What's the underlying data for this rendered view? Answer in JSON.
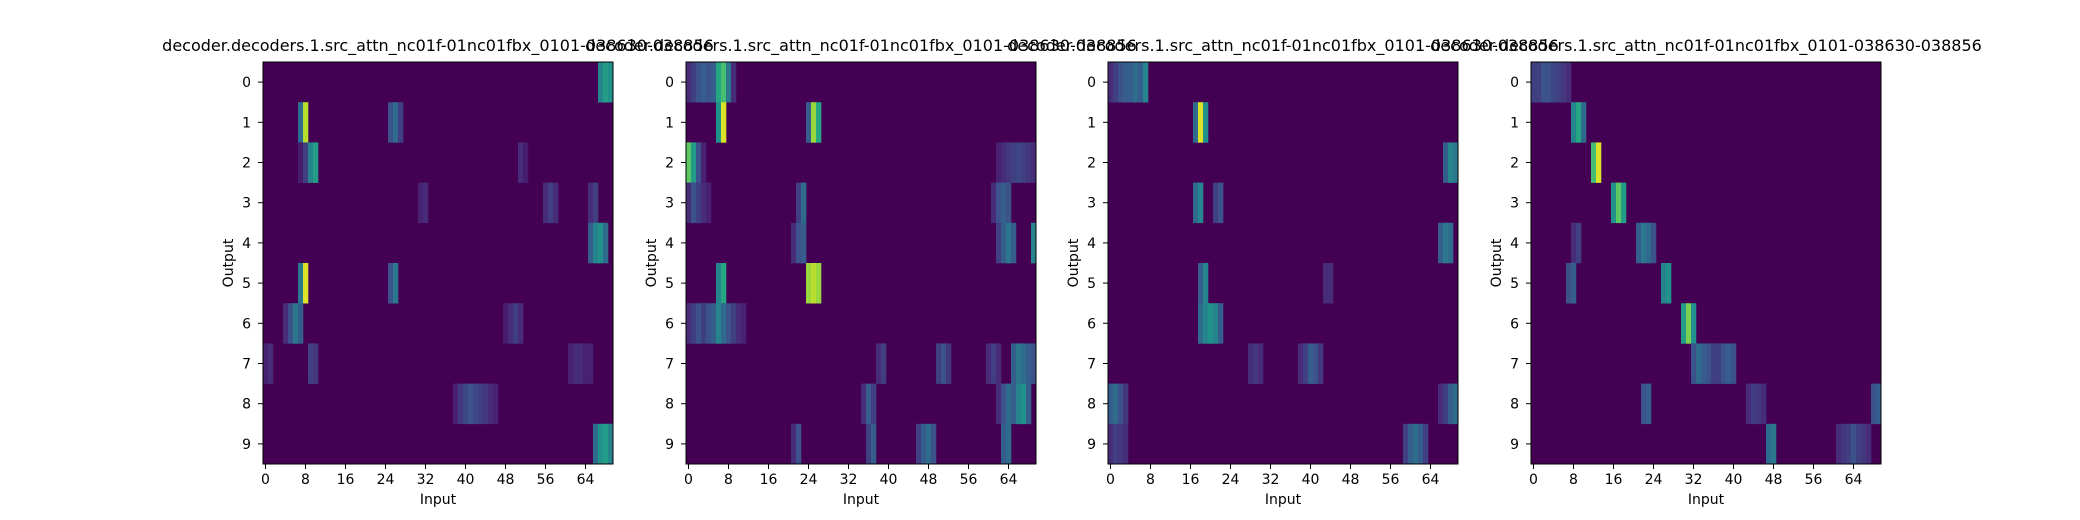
{
  "chart_data": [
    {
      "type": "heatmap",
      "title": "decoder.decoders.1.src_attn_nc01f-01nc01fbx_0101-038630-038856",
      "xlabel": "Input",
      "ylabel": "Output",
      "x_ticks": [
        0,
        8,
        16,
        24,
        32,
        40,
        48,
        56,
        64
      ],
      "y_ticks": [
        0,
        1,
        2,
        3,
        4,
        5,
        6,
        7,
        8,
        9
      ],
      "x_range": [
        0,
        70
      ],
      "rows": 10,
      "colormap": "viridis",
      "highlights": [
        {
          "row": 0,
          "cols": [
            67,
            68,
            69
          ],
          "values": [
            0.45,
            0.55,
            0.5
          ]
        },
        {
          "row": 1,
          "cols": [
            7,
            8
          ],
          "values": [
            0.35,
            0.9
          ]
        },
        {
          "row": 1,
          "cols": [
            25,
            26,
            27
          ],
          "values": [
            0.25,
            0.35,
            0.2
          ]
        },
        {
          "row": 2,
          "cols": [
            7,
            8,
            9,
            10
          ],
          "values": [
            0.1,
            0.2,
            0.45,
            0.55
          ]
        },
        {
          "row": 2,
          "cols": [
            51,
            52
          ],
          "values": [
            0.15,
            0.1
          ]
        },
        {
          "row": 3,
          "cols": [
            31,
            32,
            56,
            57,
            58,
            65,
            66
          ],
          "values": [
            0.12,
            0.15,
            0.15,
            0.2,
            0.15,
            0.15,
            0.2
          ]
        },
        {
          "row": 4,
          "cols": [
            65,
            66,
            67,
            68
          ],
          "values": [
            0.3,
            0.45,
            0.5,
            0.35
          ]
        },
        {
          "row": 5,
          "cols": [
            7,
            8
          ],
          "values": [
            0.4,
            0.95
          ]
        },
        {
          "row": 5,
          "cols": [
            25,
            26
          ],
          "values": [
            0.25,
            0.4
          ]
        },
        {
          "row": 6,
          "cols": [
            4,
            5,
            6,
            7
          ],
          "values": [
            0.15,
            0.25,
            0.4,
            0.3
          ]
        },
        {
          "row": 6,
          "cols": [
            48,
            49,
            50,
            51
          ],
          "values": [
            0.1,
            0.15,
            0.2,
            0.15
          ]
        },
        {
          "row": 7,
          "cols": [
            0,
            1,
            9,
            10,
            61,
            62,
            63,
            64,
            65
          ],
          "values": [
            0.12,
            0.15,
            0.2,
            0.18,
            0.12,
            0.15,
            0.15,
            0.12,
            0.12
          ]
        },
        {
          "row": 8,
          "cols": [
            38,
            39,
            40,
            41,
            42,
            43,
            44,
            45,
            46
          ],
          "values": [
            0.12,
            0.18,
            0.22,
            0.25,
            0.22,
            0.2,
            0.18,
            0.15,
            0.12
          ]
        },
        {
          "row": 9,
          "cols": [
            66,
            67,
            68,
            69
          ],
          "values": [
            0.35,
            0.5,
            0.55,
            0.45
          ]
        }
      ]
    },
    {
      "type": "heatmap",
      "title": "decoder.decoders.1.src_attn_nc01f-01nc01fbx_0101-038630-038856",
      "xlabel": "Input",
      "ylabel": "Output",
      "x_ticks": [
        0,
        8,
        16,
        24,
        32,
        40,
        48,
        56,
        64
      ],
      "y_ticks": [
        0,
        1,
        2,
        3,
        4,
        5,
        6,
        7,
        8,
        9
      ],
      "x_range": [
        0,
        70
      ],
      "rows": 10,
      "colormap": "viridis",
      "highlights": [
        {
          "row": 0,
          "cols": [
            0,
            1,
            2,
            3,
            4,
            5,
            6,
            7,
            8,
            9
          ],
          "values": [
            0.15,
            0.2,
            0.25,
            0.3,
            0.25,
            0.3,
            0.6,
            0.7,
            0.4,
            0.15
          ]
        },
        {
          "row": 1,
          "cols": [
            6,
            7,
            24,
            25,
            26
          ],
          "values": [
            0.5,
            0.95,
            0.3,
            0.85,
            0.6
          ]
        },
        {
          "row": 2,
          "cols": [
            0,
            1,
            2,
            3
          ],
          "values": [
            0.75,
            0.55,
            0.25,
            0.12
          ]
        },
        {
          "row": 2,
          "cols": [
            62,
            63,
            64,
            65,
            66,
            67,
            68,
            69
          ],
          "values": [
            0.12,
            0.15,
            0.18,
            0.2,
            0.22,
            0.2,
            0.18,
            0.15
          ]
        },
        {
          "row": 3,
          "cols": [
            0,
            1,
            2,
            3,
            4,
            22,
            23,
            61,
            62,
            63,
            64
          ],
          "values": [
            0.15,
            0.25,
            0.2,
            0.15,
            0.12,
            0.2,
            0.35,
            0.15,
            0.25,
            0.3,
            0.25
          ]
        },
        {
          "row": 4,
          "cols": [
            21,
            22,
            23,
            62,
            63,
            64,
            65,
            69
          ],
          "values": [
            0.15,
            0.25,
            0.3,
            0.2,
            0.3,
            0.4,
            0.3,
            0.45
          ]
        },
        {
          "row": 5,
          "cols": [
            6,
            7,
            24,
            25,
            26
          ],
          "values": [
            0.45,
            0.6,
            0.85,
            0.9,
            0.85
          ]
        },
        {
          "row": 6,
          "cols": [
            0,
            1,
            2,
            3,
            4,
            5,
            6,
            7,
            8,
            9,
            10,
            11
          ],
          "values": [
            0.15,
            0.2,
            0.25,
            0.2,
            0.25,
            0.3,
            0.45,
            0.35,
            0.25,
            0.2,
            0.15,
            0.12
          ]
        },
        {
          "row": 7,
          "cols": [
            38,
            39,
            50,
            51,
            52,
            60,
            61,
            62,
            65,
            66,
            67,
            68,
            69
          ],
          "values": [
            0.15,
            0.2,
            0.2,
            0.25,
            0.18,
            0.15,
            0.2,
            0.15,
            0.3,
            0.4,
            0.35,
            0.3,
            0.25
          ]
        },
        {
          "row": 8,
          "cols": [
            35,
            36,
            37,
            62,
            63,
            64,
            65,
            66,
            67,
            68
          ],
          "values": [
            0.15,
            0.3,
            0.2,
            0.15,
            0.25,
            0.35,
            0.3,
            0.45,
            0.5,
            0.3
          ]
        },
        {
          "row": 9,
          "cols": [
            21,
            22,
            36,
            37,
            46,
            47,
            48,
            49,
            63,
            64
          ],
          "values": [
            0.15,
            0.25,
            0.2,
            0.3,
            0.2,
            0.3,
            0.35,
            0.25,
            0.3,
            0.35
          ]
        }
      ]
    },
    {
      "type": "heatmap",
      "title": "decoder.decoders.1.src_attn_nc01f-01nc01fbx_0101-038630-038856",
      "xlabel": "Input",
      "ylabel": "Output",
      "x_ticks": [
        0,
        8,
        16,
        24,
        32,
        40,
        48,
        56,
        64
      ],
      "y_ticks": [
        0,
        1,
        2,
        3,
        4,
        5,
        6,
        7,
        8,
        9
      ],
      "x_range": [
        0,
        70
      ],
      "rows": 10,
      "colormap": "viridis",
      "highlights": [
        {
          "row": 0,
          "cols": [
            0,
            1,
            2,
            3,
            4,
            5,
            6,
            7
          ],
          "values": [
            0.15,
            0.2,
            0.25,
            0.3,
            0.3,
            0.35,
            0.3,
            0.45
          ]
        },
        {
          "row": 1,
          "cols": [
            17,
            18,
            19
          ],
          "values": [
            0.35,
            0.95,
            0.5
          ]
        },
        {
          "row": 2,
          "cols": [
            67,
            68,
            69
          ],
          "values": [
            0.3,
            0.45,
            0.4
          ]
        },
        {
          "row": 3,
          "cols": [
            17,
            18,
            21,
            22
          ],
          "values": [
            0.35,
            0.45,
            0.2,
            0.25
          ]
        },
        {
          "row": 4,
          "cols": [
            66,
            67,
            68
          ],
          "values": [
            0.3,
            0.4,
            0.35
          ]
        },
        {
          "row": 5,
          "cols": [
            18,
            19,
            43,
            44
          ],
          "values": [
            0.3,
            0.45,
            0.15,
            0.15
          ]
        },
        {
          "row": 6,
          "cols": [
            18,
            19,
            20,
            21,
            22
          ],
          "values": [
            0.35,
            0.45,
            0.5,
            0.45,
            0.3
          ]
        },
        {
          "row": 7,
          "cols": [
            28,
            29,
            30,
            38,
            39,
            40,
            41,
            42
          ],
          "values": [
            0.15,
            0.18,
            0.15,
            0.15,
            0.2,
            0.3,
            0.25,
            0.18
          ]
        },
        {
          "row": 8,
          "cols": [
            0,
            1,
            2,
            3
          ],
          "values": [
            0.3,
            0.35,
            0.25,
            0.18
          ]
        },
        {
          "row": 8,
          "cols": [
            66,
            67,
            68,
            69
          ],
          "values": [
            0.15,
            0.2,
            0.3,
            0.35
          ]
        },
        {
          "row": 9,
          "cols": [
            0,
            1,
            2,
            3
          ],
          "values": [
            0.15,
            0.2,
            0.18,
            0.15
          ]
        },
        {
          "row": 9,
          "cols": [
            59,
            60,
            61,
            62,
            63
          ],
          "values": [
            0.2,
            0.3,
            0.35,
            0.3,
            0.2
          ]
        }
      ]
    },
    {
      "type": "heatmap",
      "title": "decoder.decoders.1.src_attn_nc01f-01nc01fbx_0101-038630-038856",
      "xlabel": "Input",
      "ylabel": "Output",
      "x_ticks": [
        0,
        8,
        16,
        24,
        32,
        40,
        48,
        56,
        64
      ],
      "y_ticks": [
        0,
        1,
        2,
        3,
        4,
        5,
        6,
        7,
        8,
        9
      ],
      "x_range": [
        0,
        70
      ],
      "rows": 10,
      "colormap": "viridis",
      "highlights": [
        {
          "row": 0,
          "cols": [
            0,
            1,
            2,
            3,
            4,
            5,
            6,
            7
          ],
          "values": [
            0.2,
            0.2,
            0.25,
            0.25,
            0.22,
            0.2,
            0.18,
            0.15
          ]
        },
        {
          "row": 1,
          "cols": [
            8,
            9,
            10
          ],
          "values": [
            0.45,
            0.6,
            0.35
          ]
        },
        {
          "row": 2,
          "cols": [
            12,
            13
          ],
          "values": [
            0.7,
            0.95
          ]
        },
        {
          "row": 3,
          "cols": [
            16,
            17,
            18
          ],
          "values": [
            0.5,
            0.75,
            0.55
          ]
        },
        {
          "row": 4,
          "cols": [
            8,
            9,
            21,
            22,
            23,
            24
          ],
          "values": [
            0.15,
            0.2,
            0.3,
            0.4,
            0.35,
            0.25
          ]
        },
        {
          "row": 5,
          "cols": [
            7,
            8,
            26,
            27
          ],
          "values": [
            0.25,
            0.3,
            0.45,
            0.5
          ]
        },
        {
          "row": 6,
          "cols": [
            30,
            31,
            32
          ],
          "values": [
            0.55,
            0.8,
            0.5
          ]
        },
        {
          "row": 7,
          "cols": [
            32,
            33,
            34,
            35,
            36,
            37,
            38,
            39,
            40
          ],
          "values": [
            0.25,
            0.35,
            0.3,
            0.25,
            0.2,
            0.2,
            0.25,
            0.3,
            0.25
          ]
        },
        {
          "row": 8,
          "cols": [
            22,
            23,
            43,
            44,
            45,
            46,
            68,
            69
          ],
          "values": [
            0.25,
            0.3,
            0.15,
            0.2,
            0.18,
            0.15,
            0.25,
            0.3
          ]
        },
        {
          "row": 9,
          "cols": [
            47,
            48,
            61,
            62,
            63,
            64,
            65,
            66,
            67
          ],
          "values": [
            0.35,
            0.4,
            0.15,
            0.18,
            0.2,
            0.25,
            0.2,
            0.18,
            0.15
          ]
        }
      ]
    }
  ]
}
